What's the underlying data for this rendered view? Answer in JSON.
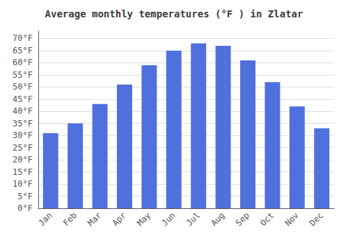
{
  "chart_data": {
    "type": "bar",
    "title": "Average monthly temperatures (°F ) in Zlatar",
    "categories": [
      "Jan",
      "Feb",
      "Mar",
      "Apr",
      "May",
      "Jun",
      "Jul",
      "Aug",
      "Sep",
      "Oct",
      "Nov",
      "Dec"
    ],
    "values": [
      31,
      35,
      43,
      51,
      59,
      65,
      68,
      67,
      61,
      52,
      42,
      33
    ],
    "ylim": [
      0,
      73
    ],
    "yticks": [
      {
        "value": 0,
        "label": "0°F"
      },
      {
        "value": 5,
        "label": "5°F"
      },
      {
        "value": 10,
        "label": "10°F"
      },
      {
        "value": 15,
        "label": "15°F"
      },
      {
        "value": 20,
        "label": "20°F"
      },
      {
        "value": 25,
        "label": "25°F"
      },
      {
        "value": 30,
        "label": "30°F"
      },
      {
        "value": 35,
        "label": "35°F"
      },
      {
        "value": 40,
        "label": "40°F"
      },
      {
        "value": 45,
        "label": "45°F"
      },
      {
        "value": 50,
        "label": "50°F"
      },
      {
        "value": 55,
        "label": "55°F"
      },
      {
        "value": 60,
        "label": "60°F"
      },
      {
        "value": 65,
        "label": "65°F"
      },
      {
        "value": 70,
        "label": "70°F"
      }
    ],
    "grid": true
  }
}
